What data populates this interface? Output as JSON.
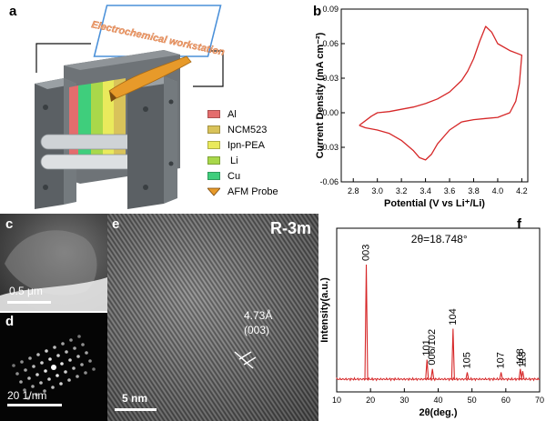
{
  "panels": {
    "a": "a",
    "b": "b",
    "c": "c",
    "d": "d",
    "e": "e",
    "f": "f"
  },
  "schematic": {
    "workstation_label": "Electrochemical workstation",
    "legend": [
      {
        "label": "Al",
        "color": "#e46d6d"
      },
      {
        "label": "NCM523",
        "color": "#d9c35a"
      },
      {
        "label": "Ipn-PEA",
        "color": "#eaea5c"
      },
      {
        "label": "Li",
        "color": "#a9d84a"
      },
      {
        "label": "Cu",
        "color": "#3fce7c"
      },
      {
        "label": "AFM Probe",
        "color": "#e79a2a"
      }
    ]
  },
  "micrographs": {
    "c_scale": "0.5 μm",
    "d_scale": "20 1/nm",
    "e_scale": "5 nm",
    "e_phase": "R-3m",
    "e_spacing": "4.73Å",
    "e_plane": "(003)"
  },
  "chart_data": [
    {
      "type": "line",
      "panel": "b",
      "title": "",
      "xlabel": "Potential (V vs Li⁺/Li)",
      "ylabel": "Current Density (mA cm⁻²)",
      "xlim": [
        2.7,
        4.25
      ],
      "ylim": [
        -0.06,
        0.09
      ],
      "xticks": [
        2.8,
        3.0,
        3.2,
        3.4,
        3.6,
        3.8,
        4.0,
        4.2
      ],
      "yticks": [
        -0.06,
        -0.03,
        0.0,
        0.03,
        0.06,
        0.09
      ],
      "xtick_labels": [
        "2.8",
        "3.0",
        "3.2",
        "3.4",
        "3.6",
        "3.8",
        "4.0",
        "4.2"
      ],
      "ytick_labels": [
        "-0.06",
        "-0.03",
        "0.00",
        "0.03",
        "0.06",
        "0.09"
      ],
      "color": "#d62728",
      "series": [
        {
          "values": [
            [
              2.85,
              -0.011
            ],
            [
              2.95,
              -0.003
            ],
            [
              3.0,
              0.0
            ],
            [
              3.1,
              0.001
            ],
            [
              3.2,
              0.003
            ],
            [
              3.3,
              0.005
            ],
            [
              3.4,
              0.008
            ],
            [
              3.5,
              0.012
            ],
            [
              3.6,
              0.018
            ],
            [
              3.7,
              0.028
            ],
            [
              3.75,
              0.036
            ],
            [
              3.8,
              0.047
            ],
            [
              3.85,
              0.062
            ],
            [
              3.9,
              0.075
            ],
            [
              3.95,
              0.07
            ],
            [
              4.0,
              0.06
            ],
            [
              4.1,
              0.054
            ],
            [
              4.2,
              0.05
            ],
            [
              4.18,
              0.025
            ],
            [
              4.15,
              0.01
            ],
            [
              4.1,
              0.0
            ],
            [
              4.0,
              -0.004
            ],
            [
              3.9,
              -0.005
            ],
            [
              3.8,
              -0.006
            ],
            [
              3.7,
              -0.008
            ],
            [
              3.6,
              -0.015
            ],
            [
              3.5,
              -0.027
            ],
            [
              3.45,
              -0.036
            ],
            [
              3.4,
              -0.041
            ],
            [
              3.35,
              -0.039
            ],
            [
              3.3,
              -0.033
            ],
            [
              3.2,
              -0.024
            ],
            [
              3.1,
              -0.018
            ],
            [
              3.0,
              -0.015
            ],
            [
              2.9,
              -0.013
            ],
            [
              2.85,
              -0.011
            ]
          ]
        }
      ]
    },
    {
      "type": "line",
      "panel": "f",
      "title": "",
      "annotation": "2θ=18.748°",
      "xlabel": "2θ(deg.)",
      "ylabel": "Intensity(a.u.)",
      "xlim": [
        10,
        70
      ],
      "xticks": [
        10,
        20,
        30,
        40,
        50,
        60,
        70
      ],
      "xtick_labels": [
        "10",
        "20",
        "30",
        "40",
        "50",
        "60",
        "70"
      ],
      "ylim": [
        0,
        100
      ],
      "grid": false,
      "color": "#d62728",
      "peaks": [
        {
          "label": "003",
          "x": 18.75,
          "y": 100
        },
        {
          "label": "101",
          "x": 36.7,
          "y": 17
        },
        {
          "label": "006/102",
          "x": 38.3,
          "y": 9
        },
        {
          "label": "104",
          "x": 44.4,
          "y": 44
        },
        {
          "label": "105",
          "x": 48.6,
          "y": 6
        },
        {
          "label": "107",
          "x": 58.6,
          "y": 6
        },
        {
          "label": "108",
          "x": 64.3,
          "y": 9
        },
        {
          "label": "113",
          "x": 65.0,
          "y": 7
        }
      ]
    }
  ]
}
